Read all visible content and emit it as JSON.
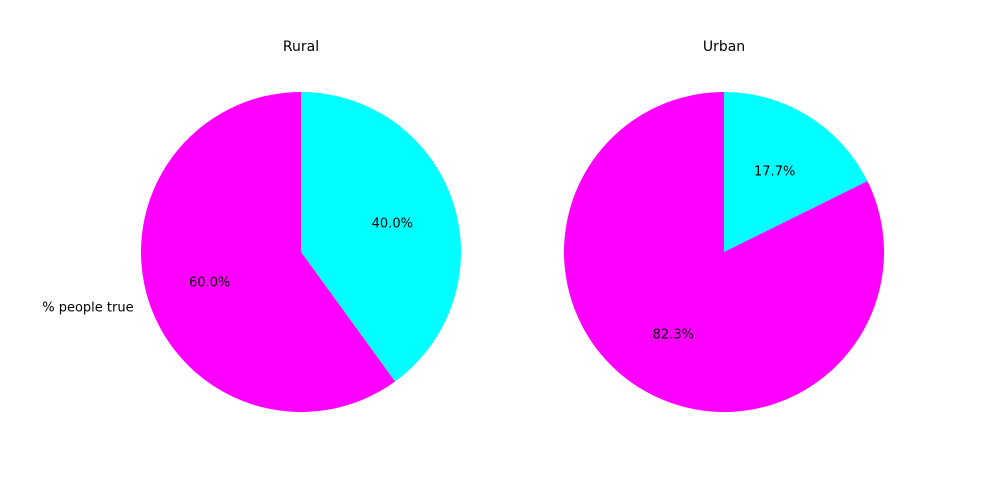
{
  "chart_data": [
    {
      "type": "pie",
      "title": "Rural",
      "slices": [
        {
          "label": "",
          "value": 40.0,
          "data_label": "40.0%",
          "color": "#00FFFF"
        },
        {
          "label": "% people true",
          "value": 60.0,
          "data_label": "60.0%",
          "color": "#FF00FF"
        }
      ],
      "start_angle": "top",
      "direction": "clockwise"
    },
    {
      "type": "pie",
      "title": "Urban",
      "slices": [
        {
          "label": "",
          "value": 17.7,
          "data_label": "17.7%",
          "color": "#00FFFF"
        },
        {
          "label": "",
          "value": 82.3,
          "data_label": "82.3%",
          "color": "#FF00FF"
        }
      ],
      "start_angle": "top",
      "direction": "clockwise"
    }
  ]
}
